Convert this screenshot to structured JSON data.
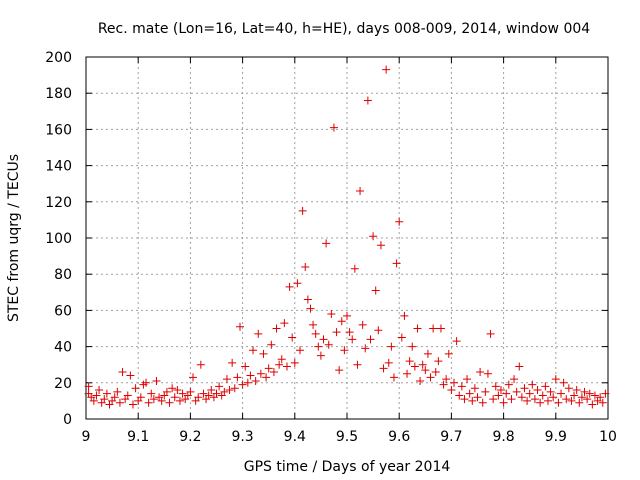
{
  "chart_data": {
    "type": "scatter",
    "title": "Rec. mate (Lon=16, Lat=40, h=HE), days 008-009, 2014, window 004",
    "xlabel": "GPS time / Days of year 2014",
    "ylabel": "STEC from uqrg / TECUs",
    "xlim": [
      9.0,
      10.0
    ],
    "ylim": [
      0,
      200
    ],
    "xticks": [
      9.0,
      9.1,
      9.2,
      9.3,
      9.4,
      9.5,
      9.6,
      9.7,
      9.8,
      9.9,
      10.0
    ],
    "xtick_labels": [
      "9",
      "9.1",
      "9.2",
      "9.3",
      "9.4",
      "9.5",
      "9.6",
      "9.7",
      "9.8",
      "9.9",
      "10"
    ],
    "yticks": [
      0,
      20,
      40,
      60,
      80,
      100,
      120,
      140,
      160,
      180,
      200
    ],
    "ytick_labels": [
      "0",
      "20",
      "40",
      "60",
      "80",
      "100",
      "120",
      "140",
      "160",
      "180",
      "200"
    ],
    "grid": true,
    "marker": "+",
    "marker_color": "#dd0000",
    "series": [
      {
        "name": "STEC",
        "points": [
          [
            9.005,
            14
          ],
          [
            9.005,
            18
          ],
          [
            9.01,
            12
          ],
          [
            9.015,
            10
          ],
          [
            9.02,
            13
          ],
          [
            9.025,
            16
          ],
          [
            9.03,
            9
          ],
          [
            9.035,
            11
          ],
          [
            9.04,
            14
          ],
          [
            9.045,
            8
          ],
          [
            9.05,
            10
          ],
          [
            9.055,
            12
          ],
          [
            9.06,
            15
          ],
          [
            9.065,
            9
          ],
          [
            9.07,
            26
          ],
          [
            9.075,
            11
          ],
          [
            9.08,
            13
          ],
          [
            9.085,
            24
          ],
          [
            9.09,
            8
          ],
          [
            9.095,
            17
          ],
          [
            9.1,
            10
          ],
          [
            9.105,
            12
          ],
          [
            9.11,
            19
          ],
          [
            9.115,
            20
          ],
          [
            9.12,
            9
          ],
          [
            9.125,
            14
          ],
          [
            9.13,
            11
          ],
          [
            9.135,
            21
          ],
          [
            9.14,
            12
          ],
          [
            9.145,
            10
          ],
          [
            9.15,
            13
          ],
          [
            9.155,
            15
          ],
          [
            9.16,
            9
          ],
          [
            9.165,
            17
          ],
          [
            9.17,
            12
          ],
          [
            9.175,
            16
          ],
          [
            9.18,
            10
          ],
          [
            9.185,
            14
          ],
          [
            9.19,
            11
          ],
          [
            9.195,
            13
          ],
          [
            9.2,
            15
          ],
          [
            9.205,
            23
          ],
          [
            9.21,
            10
          ],
          [
            9.215,
            12
          ],
          [
            9.22,
            30
          ],
          [
            9.225,
            14
          ],
          [
            9.23,
            11
          ],
          [
            9.235,
            13
          ],
          [
            9.24,
            16
          ],
          [
            9.245,
            12
          ],
          [
            9.25,
            14
          ],
          [
            9.255,
            18
          ],
          [
            9.26,
            13
          ],
          [
            9.265,
            15
          ],
          [
            9.27,
            22
          ],
          [
            9.275,
            16
          ],
          [
            9.28,
            31
          ],
          [
            9.285,
            17
          ],
          [
            9.29,
            23
          ],
          [
            9.295,
            51
          ],
          [
            9.3,
            19
          ],
          [
            9.305,
            29
          ],
          [
            9.31,
            20
          ],
          [
            9.315,
            24
          ],
          [
            9.32,
            38
          ],
          [
            9.325,
            21
          ],
          [
            9.33,
            47
          ],
          [
            9.335,
            25
          ],
          [
            9.34,
            36
          ],
          [
            9.345,
            23
          ],
          [
            9.35,
            28
          ],
          [
            9.355,
            41
          ],
          [
            9.36,
            26
          ],
          [
            9.365,
            50
          ],
          [
            9.37,
            30
          ],
          [
            9.375,
            33
          ],
          [
            9.38,
            53
          ],
          [
            9.385,
            29
          ],
          [
            9.39,
            73
          ],
          [
            9.395,
            45
          ],
          [
            9.4,
            31
          ],
          [
            9.405,
            75
          ],
          [
            9.41,
            38
          ],
          [
            9.415,
            115
          ],
          [
            9.42,
            84
          ],
          [
            9.425,
            66
          ],
          [
            9.43,
            61
          ],
          [
            9.435,
            52
          ],
          [
            9.44,
            47
          ],
          [
            9.445,
            40
          ],
          [
            9.45,
            35
          ],
          [
            9.455,
            44
          ],
          [
            9.46,
            97
          ],
          [
            9.465,
            41
          ],
          [
            9.47,
            58
          ],
          [
            9.475,
            161
          ],
          [
            9.48,
            48
          ],
          [
            9.485,
            27
          ],
          [
            9.49,
            54
          ],
          [
            9.495,
            38
          ],
          [
            9.5,
            57
          ],
          [
            9.505,
            48
          ],
          [
            9.51,
            44
          ],
          [
            9.515,
            83
          ],
          [
            9.52,
            30
          ],
          [
            9.525,
            126
          ],
          [
            9.53,
            52
          ],
          [
            9.535,
            39
          ],
          [
            9.54,
            176
          ],
          [
            9.545,
            44
          ],
          [
            9.55,
            101
          ],
          [
            9.555,
            71
          ],
          [
            9.56,
            49
          ],
          [
            9.565,
            96
          ],
          [
            9.57,
            28
          ],
          [
            9.575,
            193
          ],
          [
            9.58,
            31
          ],
          [
            9.585,
            40
          ],
          [
            9.59,
            23
          ],
          [
            9.595,
            86
          ],
          [
            9.6,
            109
          ],
          [
            9.605,
            45
          ],
          [
            9.61,
            57
          ],
          [
            9.615,
            25
          ],
          [
            9.62,
            32
          ],
          [
            9.625,
            40
          ],
          [
            9.63,
            29
          ],
          [
            9.635,
            50
          ],
          [
            9.64,
            21
          ],
          [
            9.645,
            30
          ],
          [
            9.65,
            27
          ],
          [
            9.655,
            36
          ],
          [
            9.66,
            23
          ],
          [
            9.665,
            50
          ],
          [
            9.67,
            26
          ],
          [
            9.675,
            32
          ],
          [
            9.68,
            50
          ],
          [
            9.685,
            19
          ],
          [
            9.69,
            22
          ],
          [
            9.695,
            36
          ],
          [
            9.7,
            16
          ],
          [
            9.705,
            20
          ],
          [
            9.71,
            43
          ],
          [
            9.715,
            13
          ],
          [
            9.72,
            18
          ],
          [
            9.725,
            11
          ],
          [
            9.73,
            22
          ],
          [
            9.735,
            14
          ],
          [
            9.74,
            10
          ],
          [
            9.745,
            17
          ],
          [
            9.75,
            12
          ],
          [
            9.755,
            26
          ],
          [
            9.76,
            9
          ],
          [
            9.765,
            15
          ],
          [
            9.77,
            25
          ],
          [
            9.775,
            47
          ],
          [
            9.78,
            11
          ],
          [
            9.785,
            18
          ],
          [
            9.79,
            13
          ],
          [
            9.795,
            16
          ],
          [
            9.8,
            9
          ],
          [
            9.805,
            14
          ],
          [
            9.81,
            19
          ],
          [
            9.815,
            11
          ],
          [
            9.82,
            22
          ],
          [
            9.825,
            15
          ],
          [
            9.83,
            29
          ],
          [
            9.835,
            12
          ],
          [
            9.84,
            17
          ],
          [
            9.845,
            10
          ],
          [
            9.85,
            14
          ],
          [
            9.855,
            19
          ],
          [
            9.86,
            11
          ],
          [
            9.865,
            16
          ],
          [
            9.87,
            9
          ],
          [
            9.875,
            13
          ],
          [
            9.88,
            18
          ],
          [
            9.885,
            10
          ],
          [
            9.89,
            15
          ],
          [
            9.895,
            12
          ],
          [
            9.9,
            22
          ],
          [
            9.905,
            9
          ],
          [
            9.91,
            14
          ],
          [
            9.915,
            20
          ],
          [
            9.92,
            11
          ],
          [
            9.925,
            17
          ],
          [
            9.93,
            10
          ],
          [
            9.935,
            13
          ],
          [
            9.94,
            16
          ],
          [
            9.945,
            9
          ],
          [
            9.95,
            12
          ],
          [
            9.955,
            15
          ],
          [
            9.96,
            11
          ],
          [
            9.965,
            14
          ],
          [
            9.97,
            8
          ],
          [
            9.975,
            13
          ],
          [
            9.98,
            10
          ],
          [
            9.985,
            12
          ],
          [
            9.99,
            9
          ],
          [
            9.995,
            14
          ]
        ]
      }
    ]
  }
}
